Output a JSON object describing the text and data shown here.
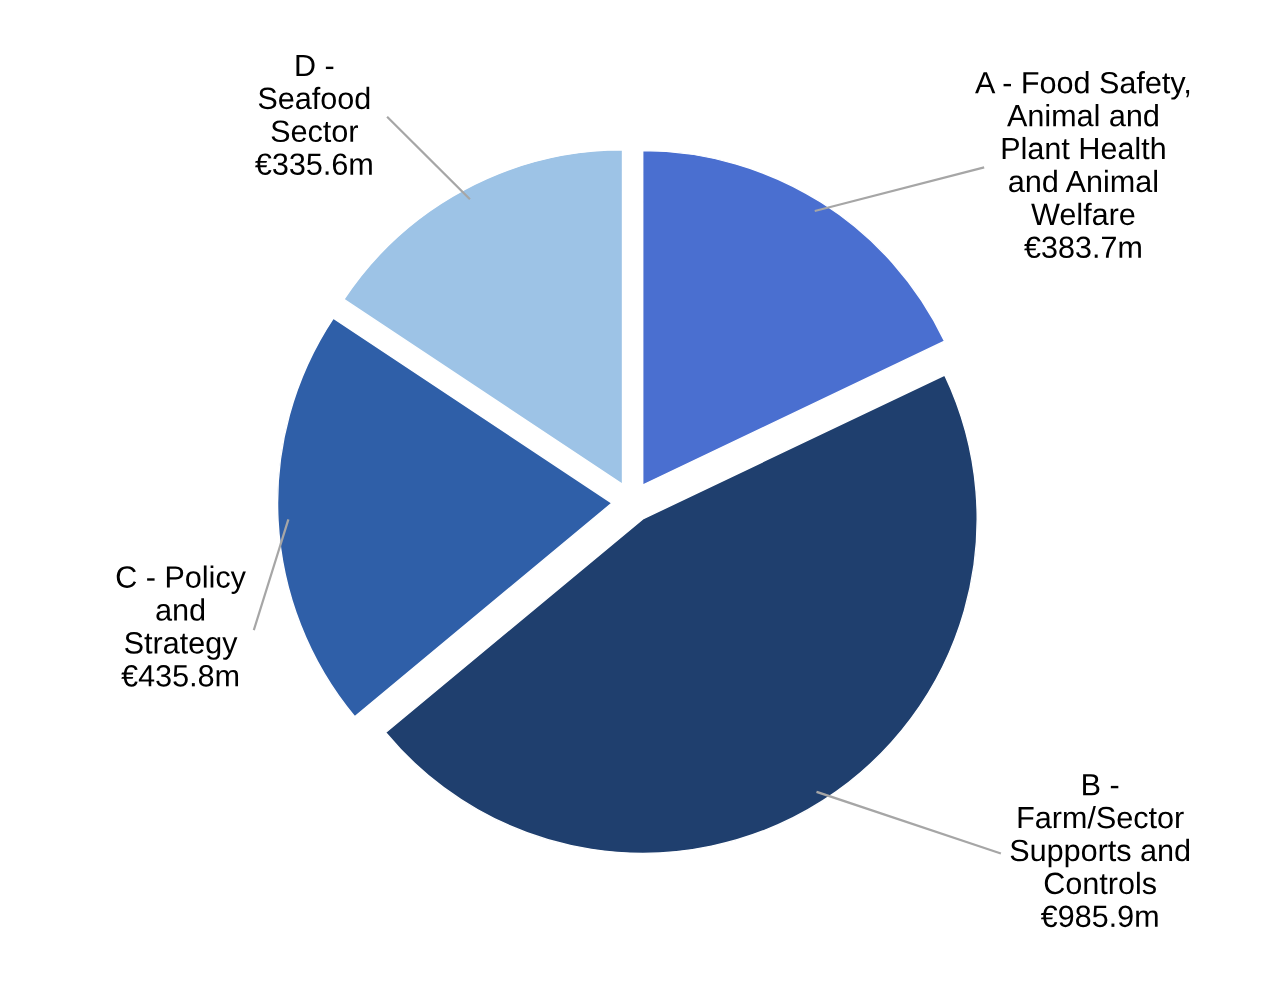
{
  "chart_data": {
    "type": "pie",
    "categories": [
      "A - Food Safety,\nAnimal and\nPlant Health\nand Animal\nWelfare",
      "B -\nFarm/Sector\nSupports and\nControls",
      "C - Policy\nand\nStrategy",
      "D -\nSeafood\nSector"
    ],
    "values": [
      383.7,
      985.9,
      435.8,
      335.6
    ],
    "value_labels": [
      "€383.7m",
      "€985.9m",
      "€435.8m",
      "€335.6m"
    ],
    "colors": [
      "#4a6fd0",
      "#1f3f6e",
      "#2f5fa8",
      "#9dc3e6"
    ],
    "legend": false
  }
}
